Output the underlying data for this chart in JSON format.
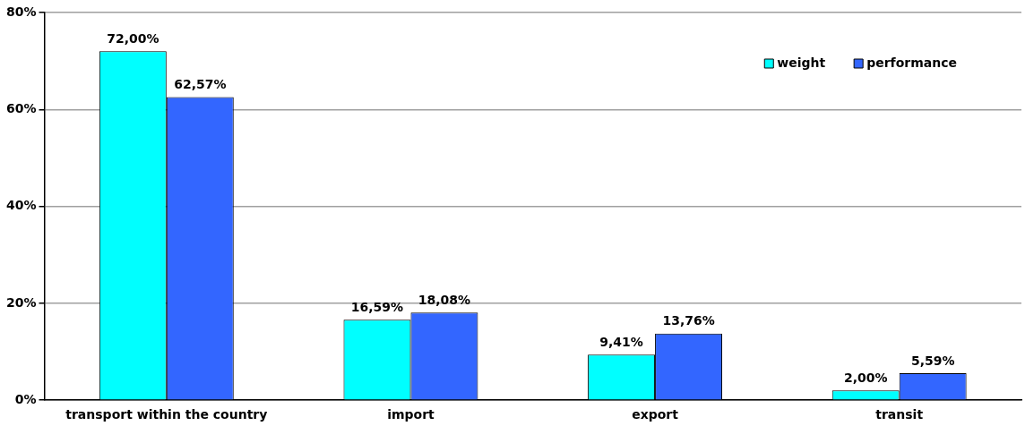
{
  "chart_data": {
    "type": "bar",
    "categories": [
      "transport within the country",
      "import",
      "export",
      "transit"
    ],
    "series": [
      {
        "name": "weight",
        "color": "#00ffff",
        "values": [
          72.0,
          16.59,
          9.41,
          2.0
        ],
        "value_labels": [
          "72,00%",
          "16,59%",
          "9,41%",
          "2,00%"
        ]
      },
      {
        "name": "performance",
        "color": "#3366ff",
        "values": [
          62.57,
          18.08,
          13.76,
          5.59
        ],
        "value_labels": [
          "62,57%",
          "18,08%",
          "13,76%",
          "5,59%"
        ]
      }
    ],
    "ylim": [
      0,
      80
    ],
    "yticks": [
      {
        "value": 0,
        "label": "0%"
      },
      {
        "value": 20,
        "label": "20%"
      },
      {
        "value": 40,
        "label": "40%"
      },
      {
        "value": 60,
        "label": "60%"
      },
      {
        "value": 80,
        "label": "80%"
      }
    ],
    "grid": "y",
    "legend": "top right"
  }
}
